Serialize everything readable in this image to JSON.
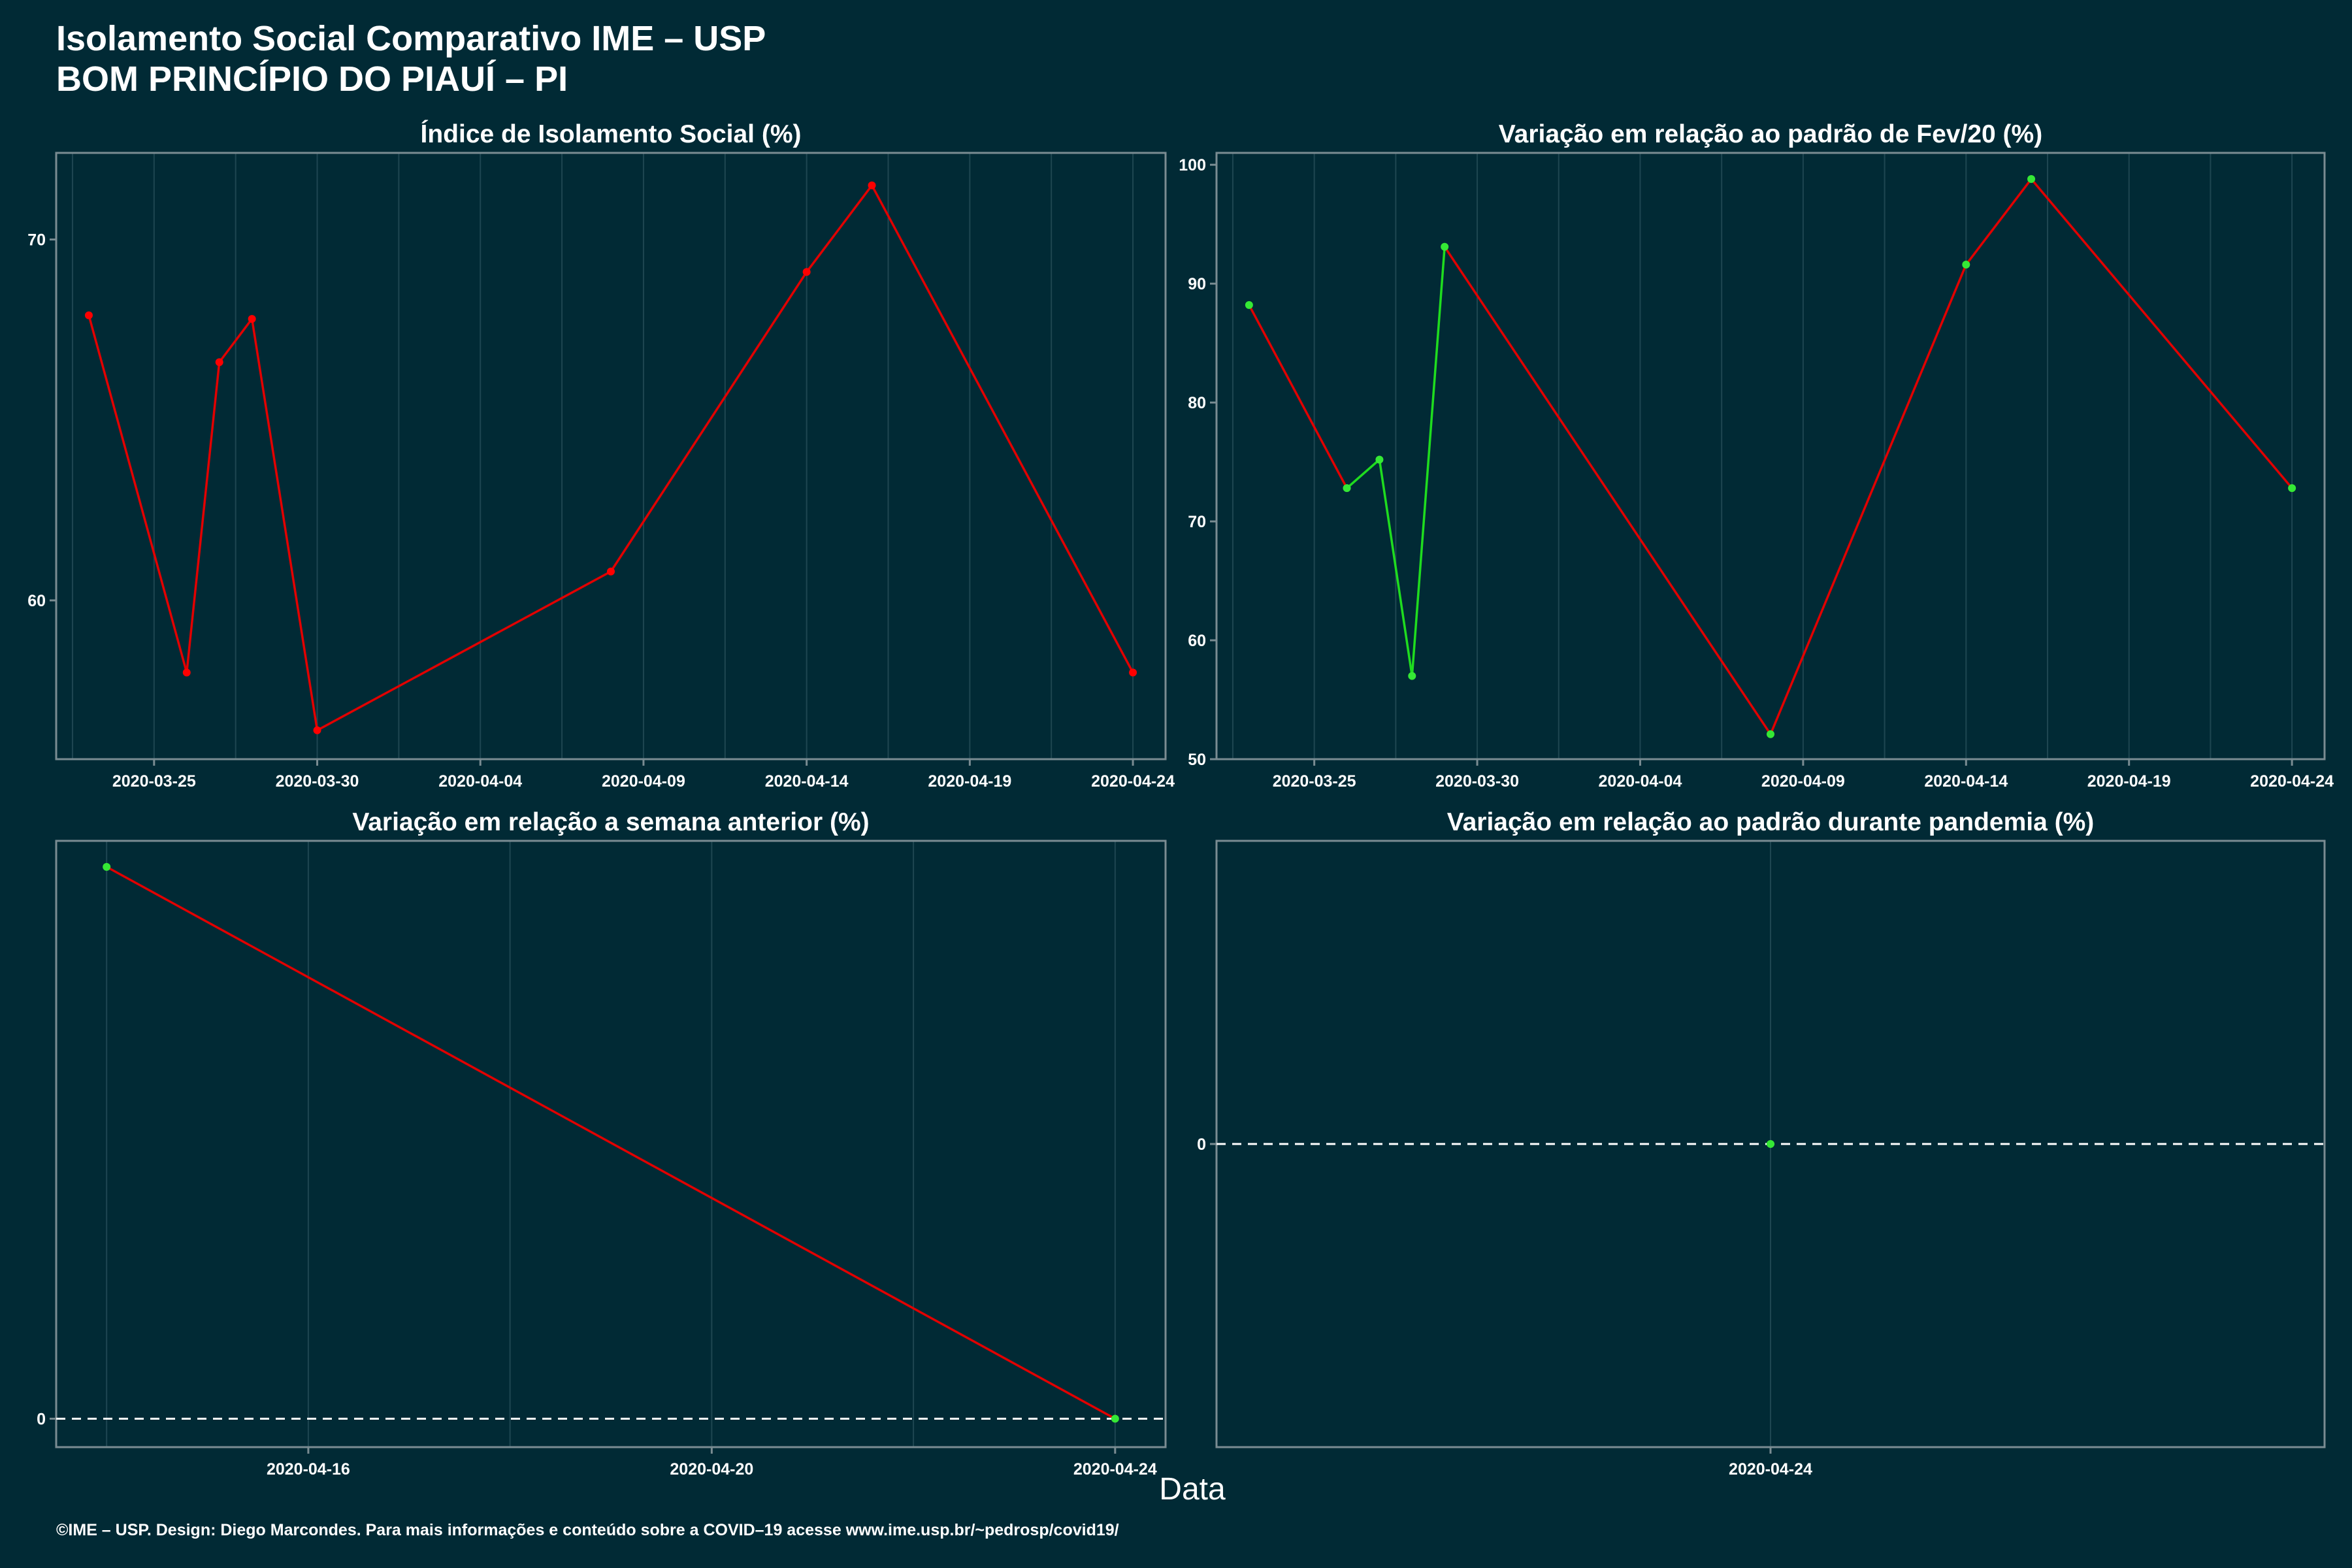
{
  "header": {
    "title_line1": "Isolamento Social Comparativo IME – USP",
    "title_line2": "BOM PRINCÍPIO DO PIAUÍ – PI"
  },
  "xlabel": "Data",
  "footer": "©IME – USP. Design: Diego Marcondes. Para mais informações e conteúdo sobre a COVID–19 acesse www.ime.usp.br/~pedrosp/covid19/",
  "colors": {
    "background": "#012a35",
    "frame": "#7a8c92",
    "grid": "#1e4651",
    "line_red": "#e10000",
    "line_green": "#1fdc1f",
    "point_green": "#35e835",
    "point_red": "#ff0000",
    "text": "#ffffff"
  },
  "chart_data": [
    {
      "id": "panel-isolamento",
      "type": "line",
      "title": "Índice de Isolamento Social (%)",
      "xlabel": "",
      "ylabel": "",
      "x": [
        "2020-03-23",
        "2020-03-26",
        "2020-03-27",
        "2020-03-28",
        "2020-03-30",
        "2020-04-08",
        "2020-04-14",
        "2020-04-16",
        "2020-04-24"
      ],
      "values": [
        67.9,
        58.0,
        66.6,
        67.8,
        56.4,
        60.8,
        69.1,
        71.5,
        58.0
      ],
      "segment_colors": [
        "red",
        "red",
        "red",
        "red",
        "red",
        "red",
        "red",
        "red"
      ],
      "point_colors": [
        "red",
        "red",
        "red",
        "red",
        "red",
        "red",
        "red",
        "red",
        "red"
      ],
      "xlim": [
        "2020-03-22",
        "2020-04-25"
      ],
      "ylim": [
        55.6,
        72.4
      ],
      "yticks": [
        60,
        70
      ],
      "xticks": [
        "2020-03-25",
        "2020-03-30",
        "2020-04-04",
        "2020-04-09",
        "2020-04-14",
        "2020-04-19",
        "2020-04-24"
      ],
      "grid": true,
      "zero_line": false
    },
    {
      "id": "panel-variacao-fev",
      "type": "line",
      "title": "Variação em relação ao padrão de Fev/20 (%)",
      "xlabel": "",
      "ylabel": "",
      "x": [
        "2020-03-23",
        "2020-03-26",
        "2020-03-27",
        "2020-03-28",
        "2020-03-29",
        "2020-04-08",
        "2020-04-14",
        "2020-04-16",
        "2020-04-24"
      ],
      "values": [
        88.2,
        72.8,
        75.2,
        57.0,
        93.1,
        52.1,
        91.6,
        98.8,
        72.8
      ],
      "segment_colors": [
        "red",
        "green",
        "green",
        "green",
        "red",
        "red",
        "red",
        "red"
      ],
      "point_colors": [
        "green",
        "green",
        "green",
        "green",
        "green",
        "green",
        "green",
        "green",
        "green"
      ],
      "xlim": [
        "2020-03-22",
        "2020-04-25"
      ],
      "ylim": [
        50.0,
        101.0
      ],
      "yticks": [
        50,
        60,
        70,
        80,
        90,
        100
      ],
      "xticks": [
        "2020-03-25",
        "2020-03-30",
        "2020-04-04",
        "2020-04-09",
        "2020-04-14",
        "2020-04-19",
        "2020-04-24"
      ],
      "grid": true,
      "zero_line": false
    },
    {
      "id": "panel-semana-anterior",
      "type": "line",
      "title": "Variação em relação a semana anterior (%)",
      "xlabel": "",
      "ylabel": "",
      "x": [
        "2020-04-14",
        "2020-04-24"
      ],
      "values": [
        23.3,
        0
      ],
      "segment_colors": [
        "red"
      ],
      "point_colors": [
        "green",
        "green"
      ],
      "xlim": [
        "2020-04-13.5",
        "2020-04-24.5"
      ],
      "ylim": [
        -1.2,
        24.4
      ],
      "yticks": [
        0
      ],
      "xticks": [
        "2020-04-16",
        "2020-04-20",
        "2020-04-24"
      ],
      "grid": true,
      "zero_line": true
    },
    {
      "id": "panel-padrao-pandemia",
      "type": "line",
      "title": "Variação em relação ao padrão durante pandemia (%)",
      "xlabel": "",
      "ylabel": "",
      "x": [
        "2020-04-24"
      ],
      "values": [
        0
      ],
      "segment_colors": [],
      "point_colors": [
        "green"
      ],
      "xlim": [
        "2020-04-23.95",
        "2020-04-24.05"
      ],
      "ylim": [
        -1,
        1
      ],
      "yticks": [
        0
      ],
      "xticks": [
        "2020-04-24"
      ],
      "grid": true,
      "zero_line": true
    }
  ]
}
